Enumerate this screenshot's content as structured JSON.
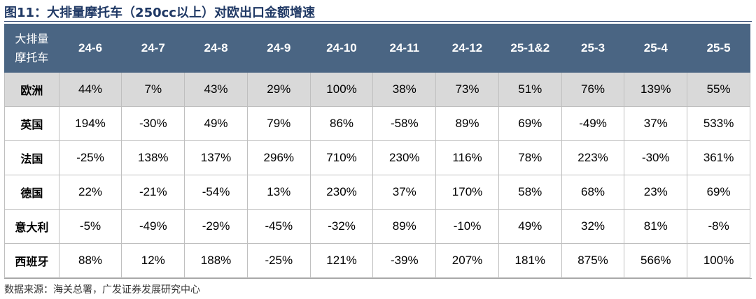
{
  "title": "图11：大排量摩托车（250cc以上）对欧出口金额增速",
  "table": {
    "corner_label_line1": "大排量",
    "corner_label_line2": "摩托车",
    "columns": [
      "24-6",
      "24-7",
      "24-8",
      "24-9",
      "24-10",
      "24-11",
      "24-12",
      "25-1&2",
      "25-3",
      "25-4",
      "25-5"
    ],
    "rows": [
      {
        "region": "欧洲",
        "values": [
          "44%",
          "7%",
          "43%",
          "29%",
          "100%",
          "38%",
          "73%",
          "51%",
          "76%",
          "139%",
          "55%"
        ]
      },
      {
        "region": "英国",
        "values": [
          "194%",
          "-30%",
          "49%",
          "79%",
          "86%",
          "-58%",
          "89%",
          "69%",
          "-49%",
          "37%",
          "533%"
        ]
      },
      {
        "region": "法国",
        "values": [
          "-25%",
          "138%",
          "137%",
          "296%",
          "710%",
          "230%",
          "116%",
          "78%",
          "223%",
          "-30%",
          "361%"
        ]
      },
      {
        "region": "德国",
        "values": [
          "22%",
          "-21%",
          "-54%",
          "13%",
          "230%",
          "37%",
          "170%",
          "58%",
          "68%",
          "23%",
          "69%"
        ]
      },
      {
        "region": "意大利",
        "values": [
          "-5%",
          "-49%",
          "-29%",
          "-45%",
          "-32%",
          "89%",
          "-10%",
          "49%",
          "32%",
          "81%",
          "-8%"
        ]
      },
      {
        "region": "西班牙",
        "values": [
          "88%",
          "12%",
          "188%",
          "-25%",
          "121%",
          "-39%",
          "207%",
          "181%",
          "875%",
          "566%",
          "100%"
        ]
      }
    ]
  },
  "colors": {
    "header_bg": "#4a6583",
    "highlight_row_bg": "#d9d9d9",
    "title_color": "#1f3864"
  },
  "source": "数据来源：海关总署，广发证券发展研究中心"
}
